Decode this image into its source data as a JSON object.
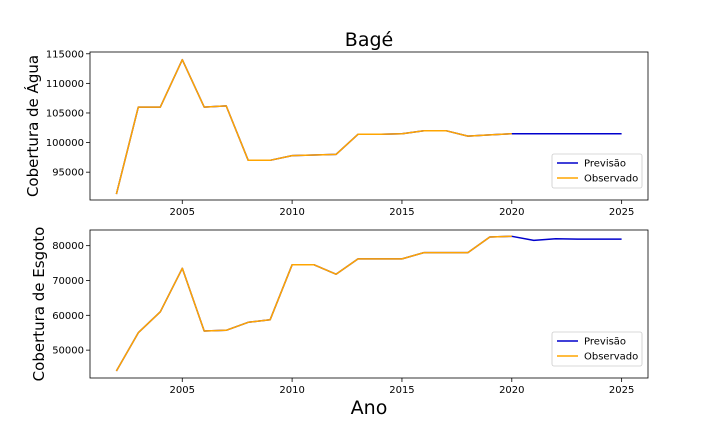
{
  "chart_data": {
    "type": "line",
    "title": "Bagé",
    "xlabel": "Ano",
    "legend_placement": "lower-right",
    "series_colors": {
      "Previsão": "#0000cc",
      "Observado": "#ffa500"
    },
    "panels": [
      {
        "ylabel": "Cobertura de Água",
        "xlim": [
          2000.8,
          2026.2
        ],
        "ylim": [
          90300,
          115300
        ],
        "xticks": [
          2005,
          2010,
          2015,
          2020,
          2025
        ],
        "yticks": [
          95000,
          100000,
          105000,
          110000,
          115000
        ],
        "series": [
          {
            "name": "Previsão",
            "x": [
              2002,
              2003,
              2004,
              2005,
              2006,
              2007,
              2008,
              2009,
              2010,
              2011,
              2012,
              2013,
              2014,
              2015,
              2016,
              2017,
              2018,
              2019,
              2020,
              2021,
              2022,
              2023,
              2024,
              2025
            ],
            "y": [
              91300,
              106000,
              106000,
              114000,
              106000,
              106200,
              97000,
              97000,
              97800,
              97900,
              98000,
              101400,
              101400,
              101500,
              102000,
              102000,
              101100,
              101300,
              101500,
              101500,
              101500,
              101500,
              101500,
              101500
            ]
          },
          {
            "name": "Observado",
            "x": [
              2002,
              2003,
              2004,
              2005,
              2006,
              2007,
              2008,
              2009,
              2010,
              2011,
              2012,
              2013,
              2014,
              2015,
              2016,
              2017,
              2018,
              2019,
              2020
            ],
            "y": [
              91300,
              106000,
              106000,
              114000,
              106000,
              106200,
              97000,
              97000,
              97800,
              97900,
              98000,
              101400,
              101400,
              101500,
              102000,
              102000,
              101100,
              101300,
              101500
            ]
          }
        ]
      },
      {
        "ylabel": "Cobertura de Esgoto",
        "xlim": [
          2000.8,
          2026.2
        ],
        "ylim": [
          42000,
          84500
        ],
        "xticks": [
          2005,
          2010,
          2015,
          2020,
          2025
        ],
        "yticks": [
          50000,
          60000,
          70000,
          80000
        ],
        "series": [
          {
            "name": "Previsão",
            "x": [
              2002,
              2003,
              2004,
              2005,
              2006,
              2007,
              2008,
              2009,
              2010,
              2011,
              2012,
              2013,
              2014,
              2015,
              2016,
              2017,
              2018,
              2019,
              2020,
              2021,
              2022,
              2023,
              2024,
              2025
            ],
            "y": [
              44000,
              55000,
              61000,
              73500,
              55500,
              55700,
              58000,
              58700,
              74500,
              74500,
              71800,
              76200,
              76200,
              76200,
              78000,
              78000,
              78000,
              82500,
              82700,
              81500,
              82000,
              81900,
              81900,
              81900
            ]
          },
          {
            "name": "Observado",
            "x": [
              2002,
              2003,
              2004,
              2005,
              2006,
              2007,
              2008,
              2009,
              2010,
              2011,
              2012,
              2013,
              2014,
              2015,
              2016,
              2017,
              2018,
              2019,
              2020
            ],
            "y": [
              44000,
              55000,
              61000,
              73500,
              55500,
              55700,
              58000,
              58700,
              74500,
              74500,
              71800,
              76200,
              76200,
              76200,
              78000,
              78000,
              78000,
              82500,
              82700
            ]
          }
        ]
      }
    ]
  }
}
